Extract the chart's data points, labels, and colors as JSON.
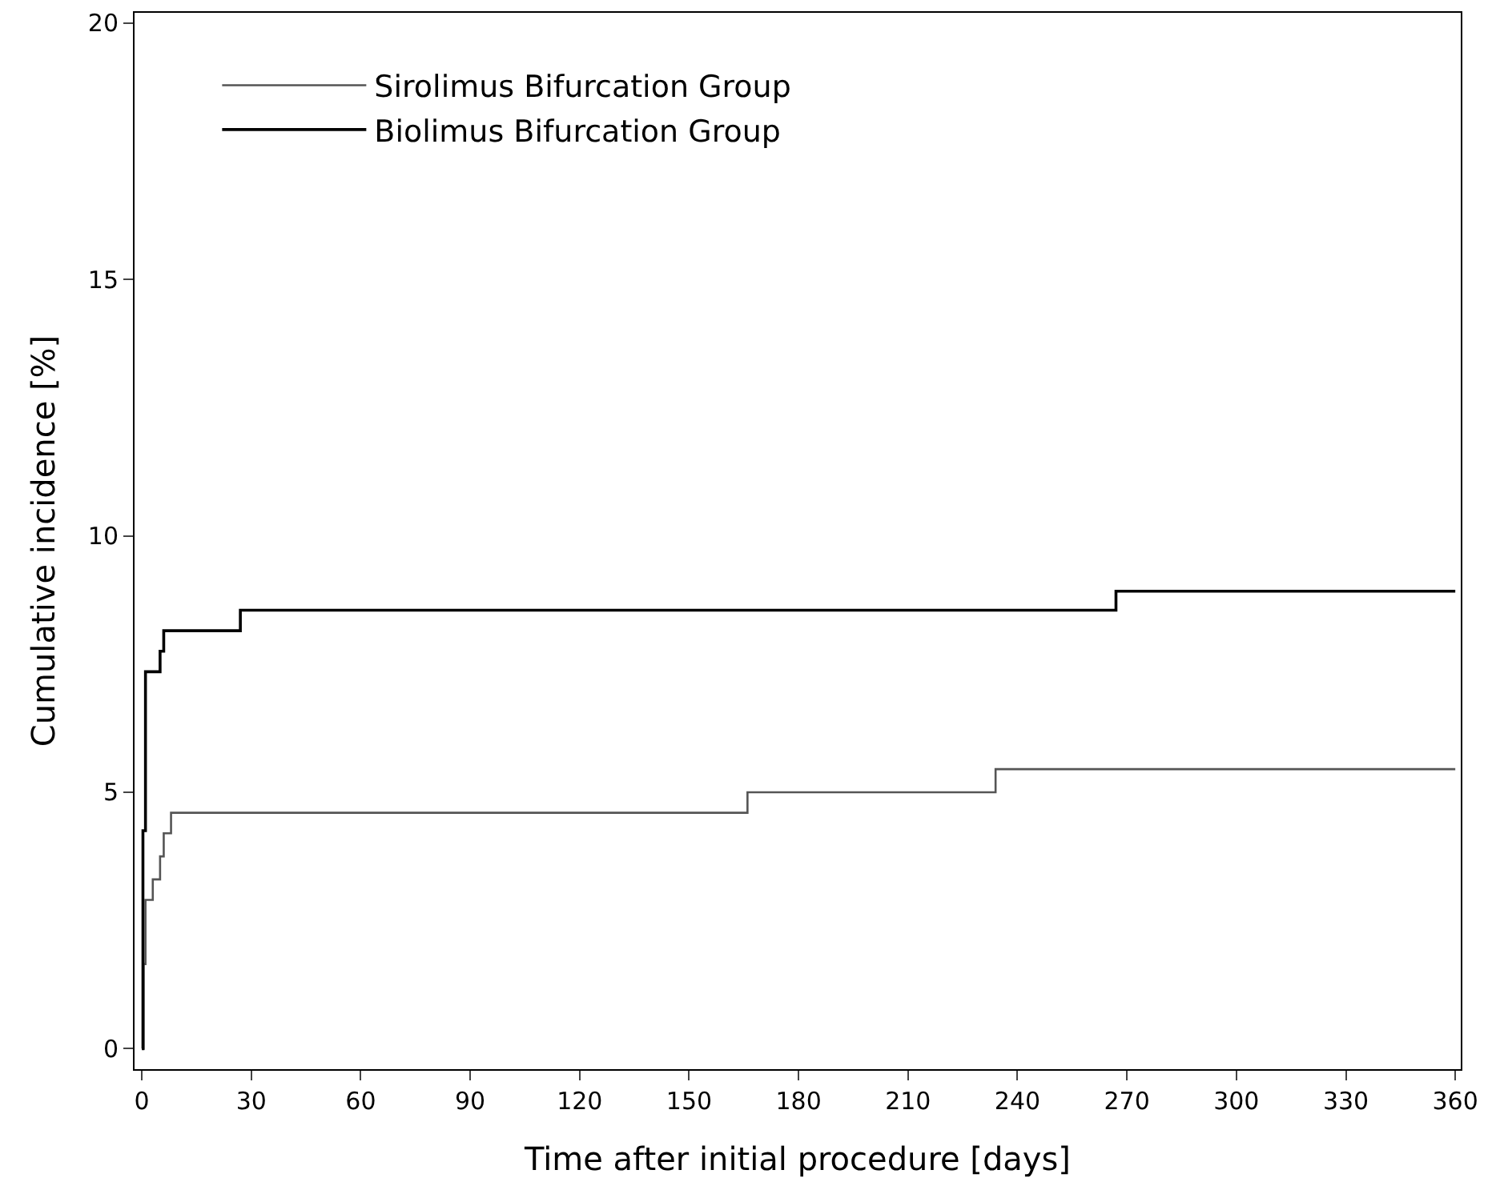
{
  "chart_data": {
    "type": "step",
    "xlabel": "Time after initial procedure [days]",
    "ylabel": "Cumulative incidence [%]",
    "series": [
      {
        "name": "Sirolimus Bifurcation Group",
        "color": "#555555",
        "x": [
          0,
          0.5,
          1,
          3,
          5,
          6,
          8,
          166,
          234,
          360
        ],
        "values": [
          0,
          1.65,
          2.9,
          3.3,
          3.75,
          4.2,
          4.6,
          5.0,
          5.45,
          5.45
        ]
      },
      {
        "name": "Biolimus Bifurcation Group",
        "color": "#000000",
        "x": [
          0,
          0.3,
          1,
          5,
          6,
          27,
          267,
          360
        ],
        "values": [
          0,
          4.25,
          7.35,
          7.75,
          8.15,
          8.55,
          8.92,
          8.92
        ]
      }
    ],
    "xlim": [
      -2,
      361.5
    ],
    "xticks": [
      0,
      30,
      60,
      90,
      120,
      150,
      180,
      210,
      240,
      270,
      300,
      330,
      360
    ],
    "ylim": [
      -0.4,
      20.2
    ],
    "yticks": [
      0,
      5,
      10,
      15,
      20
    ],
    "grid": false,
    "legend": "top left",
    "marker": "none",
    "line_style": "solid"
  }
}
